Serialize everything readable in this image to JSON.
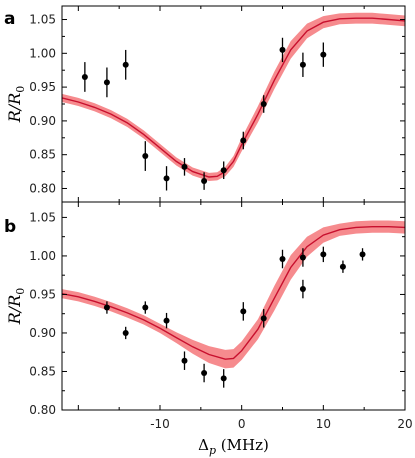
{
  "chart_data": [
    {
      "panel": "a",
      "type": "scatter",
      "ylabel": "R/R0",
      "xlim": [
        -22,
        20
      ],
      "ylim": [
        0.78,
        1.07
      ],
      "x_ticks": [
        "-10",
        "0",
        "10",
        "20"
      ],
      "y_ticks": [
        "0.80",
        "0.85",
        "0.90",
        "0.95",
        "1.00",
        "1.05"
      ],
      "grid": false,
      "points": [
        {
          "x": -19.2,
          "y": 0.965,
          "err": 0.022
        },
        {
          "x": -16.5,
          "y": 0.957,
          "err": 0.022
        },
        {
          "x": -14.2,
          "y": 0.983,
          "err": 0.022
        },
        {
          "x": -11.8,
          "y": 0.848,
          "err": 0.022
        },
        {
          "x": -9.2,
          "y": 0.815,
          "err": 0.018
        },
        {
          "x": -7.0,
          "y": 0.832,
          "err": 0.013
        },
        {
          "x": -4.6,
          "y": 0.811,
          "err": 0.013
        },
        {
          "x": -2.2,
          "y": 0.827,
          "err": 0.013
        },
        {
          "x": 0.2,
          "y": 0.871,
          "err": 0.013
        },
        {
          "x": 2.7,
          "y": 0.925,
          "err": 0.013
        },
        {
          "x": 5.0,
          "y": 1.005,
          "err": 0.018
        },
        {
          "x": 7.5,
          "y": 0.983,
          "err": 0.018
        },
        {
          "x": 10.0,
          "y": 0.998,
          "err": 0.018
        }
      ],
      "curve": [
        [
          -22,
          0.934
        ],
        [
          -20,
          0.928
        ],
        [
          -18,
          0.92
        ],
        [
          -16,
          0.91
        ],
        [
          -14,
          0.897
        ],
        [
          -12,
          0.88
        ],
        [
          -10,
          0.86
        ],
        [
          -8,
          0.84
        ],
        [
          -6,
          0.825
        ],
        [
          -4,
          0.817
        ],
        [
          -3,
          0.818
        ],
        [
          -2,
          0.825
        ],
        [
          -1,
          0.84
        ],
        [
          0,
          0.865
        ],
        [
          2,
          0.91
        ],
        [
          4,
          0.96
        ],
        [
          6,
          1.005
        ],
        [
          8,
          1.033
        ],
        [
          10,
          1.046
        ],
        [
          12,
          1.051
        ],
        [
          14,
          1.052
        ],
        [
          16,
          1.052
        ],
        [
          18,
          1.05
        ],
        [
          20,
          1.048
        ]
      ],
      "band_halfwidth": [
        0.006,
        0.006,
        0.006,
        0.006,
        0.006,
        0.006,
        0.006,
        0.006,
        0.006,
        0.006,
        0.006,
        0.007,
        0.008,
        0.01,
        0.012,
        0.013,
        0.013,
        0.011,
        0.009,
        0.008,
        0.008,
        0.008,
        0.008,
        0.008
      ],
      "colors": {
        "curve": "#c8102e",
        "band": "#f4777a",
        "points": "#000000"
      }
    },
    {
      "panel": "b",
      "type": "scatter",
      "xlabel": "Δp (MHz)",
      "ylabel": "R/R0",
      "xlim": [
        -22,
        20
      ],
      "ylim": [
        0.8,
        1.07
      ],
      "x_ticks": [
        "-10",
        "0",
        "10",
        "20"
      ],
      "y_ticks": [
        "0.80",
        "0.85",
        "0.90",
        "0.95",
        "1.00",
        "1.05"
      ],
      "grid": false,
      "points": [
        {
          "x": -16.5,
          "y": 0.933,
          "err": 0.008
        },
        {
          "x": -14.2,
          "y": 0.9,
          "err": 0.008
        },
        {
          "x": -11.8,
          "y": 0.933,
          "err": 0.008
        },
        {
          "x": -9.2,
          "y": 0.916,
          "err": 0.01
        },
        {
          "x": -7.0,
          "y": 0.864,
          "err": 0.012
        },
        {
          "x": -4.6,
          "y": 0.848,
          "err": 0.012
        },
        {
          "x": -2.2,
          "y": 0.841,
          "err": 0.012
        },
        {
          "x": 0.2,
          "y": 0.928,
          "err": 0.012
        },
        {
          "x": 2.7,
          "y": 0.919,
          "err": 0.012
        },
        {
          "x": 5.0,
          "y": 0.996,
          "err": 0.012
        },
        {
          "x": 7.5,
          "y": 0.998,
          "err": 0.012
        },
        {
          "x": 7.5,
          "y": 0.957,
          "err": 0.012
        },
        {
          "x": 10.0,
          "y": 1.002,
          "err": 0.01
        },
        {
          "x": 12.4,
          "y": 0.986,
          "err": 0.008
        },
        {
          "x": 14.8,
          "y": 1.002,
          "err": 0.008
        }
      ],
      "curve": [
        [
          -22,
          0.951
        ],
        [
          -20,
          0.947
        ],
        [
          -18,
          0.941
        ],
        [
          -16,
          0.934
        ],
        [
          -14,
          0.926
        ],
        [
          -12,
          0.917
        ],
        [
          -10,
          0.906
        ],
        [
          -8,
          0.894
        ],
        [
          -6,
          0.882
        ],
        [
          -4,
          0.872
        ],
        [
          -2,
          0.866
        ],
        [
          -1,
          0.867
        ],
        [
          0,
          0.877
        ],
        [
          2,
          0.905
        ],
        [
          4,
          0.945
        ],
        [
          6,
          0.985
        ],
        [
          8,
          1.012
        ],
        [
          10,
          1.027
        ],
        [
          12,
          1.034
        ],
        [
          14,
          1.037
        ],
        [
          16,
          1.038
        ],
        [
          18,
          1.038
        ],
        [
          20,
          1.037
        ]
      ],
      "band_halfwidth": [
        0.006,
        0.006,
        0.006,
        0.006,
        0.006,
        0.006,
        0.006,
        0.007,
        0.009,
        0.011,
        0.012,
        0.012,
        0.012,
        0.013,
        0.016,
        0.016,
        0.013,
        0.01,
        0.008,
        0.008,
        0.008,
        0.008,
        0.008
      ],
      "colors": {
        "curve": "#c8102e",
        "band": "#f4777a",
        "points": "#000000"
      }
    }
  ]
}
